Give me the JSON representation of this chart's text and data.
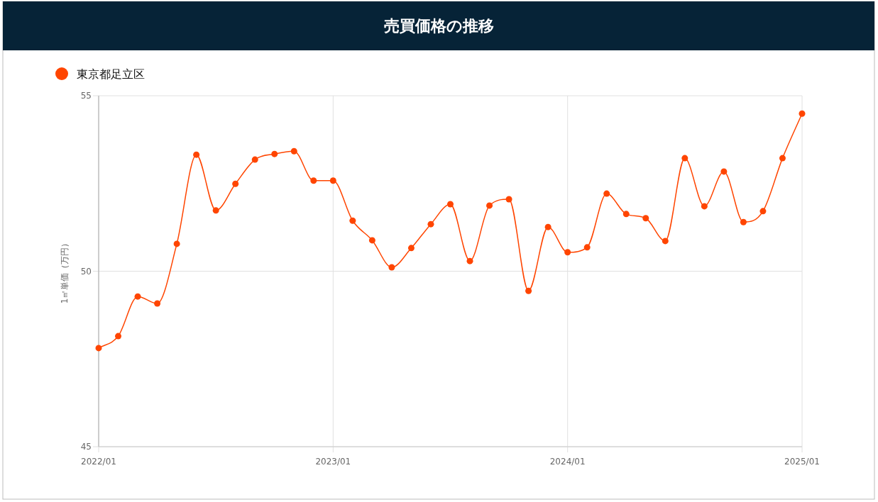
{
  "chart_data": {
    "type": "line",
    "title": "売買価格の推移",
    "ylabel": "1㎡単価（万円）",
    "x": [
      "2022-01",
      "2022-02",
      "2022-03",
      "2022-04",
      "2022-05",
      "2022-06",
      "2022-07",
      "2022-08",
      "2022-09",
      "2022-10",
      "2022-11",
      "2022-12",
      "2023-01",
      "2023-02",
      "2023-03",
      "2023-04",
      "2023-05",
      "2023-06",
      "2023-07",
      "2023-08",
      "2023-09",
      "2023-10",
      "2023-11",
      "2023-12",
      "2024-01",
      "2024-02",
      "2024-03",
      "2024-04",
      "2024-05",
      "2024-06",
      "2024-07",
      "2024-08",
      "2024-09",
      "2024-10",
      "2024-11",
      "2024-12",
      "2025-01"
    ],
    "series": [
      {
        "name": "東京都足立区",
        "color": "#ff4500",
        "values": [
          47.81,
          48.15,
          49.28,
          49.08,
          50.78,
          53.32,
          51.73,
          52.49,
          53.18,
          53.34,
          53.42,
          52.58,
          52.58,
          51.44,
          50.88,
          50.11,
          50.66,
          51.34,
          51.91,
          50.29,
          51.87,
          52.05,
          49.44,
          51.26,
          50.54,
          50.68,
          52.21,
          51.63,
          51.51,
          50.86,
          53.22,
          51.85,
          52.84,
          51.4,
          51.71,
          53.22,
          54.49
        ]
      }
    ],
    "xlim": [
      "2022-01",
      "2025-01"
    ],
    "xticks": [
      {
        "value": "2022-01",
        "label": "2022/01"
      },
      {
        "value": "2023-01",
        "label": "2023/01"
      },
      {
        "value": "2024-01",
        "label": "2024/01"
      },
      {
        "value": "2025-01",
        "label": "2025/01"
      }
    ],
    "ylim": [
      45,
      55
    ],
    "yticks": [
      45,
      50,
      55
    ],
    "grid": true,
    "legend": "top left",
    "marker": "circle",
    "line_style": "solid"
  }
}
